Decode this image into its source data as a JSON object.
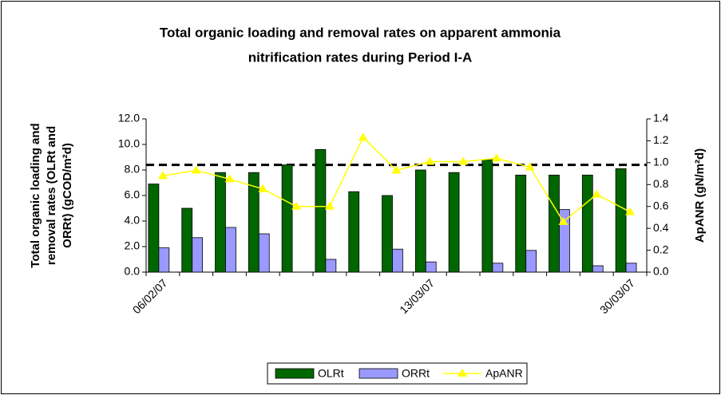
{
  "chart_data": {
    "type": "bar",
    "title": [
      "Total organic loading and removal rates on apparent ammonia",
      "nitrification rates during Period I-A"
    ],
    "ylabel": [
      "Total organic loading and",
      "removal rates (OLRt and",
      "ORRt) (gCOD/m²d)"
    ],
    "y2label": "ApANR (gN/m²d)",
    "categories": [
      "06/02/07",
      null,
      null,
      null,
      null,
      null,
      null,
      null,
      "13/03/07",
      null,
      null,
      null,
      null,
      null,
      "30/03/07"
    ],
    "series": [
      {
        "name": "OLRt",
        "type": "bar",
        "color": "#006600",
        "values": [
          6.9,
          5.0,
          7.8,
          7.8,
          8.4,
          9.6,
          6.3,
          6.0,
          8.0,
          7.8,
          8.8,
          7.6,
          7.6,
          7.6,
          8.1
        ]
      },
      {
        "name": "ORRt",
        "type": "bar",
        "color": "#9999ff",
        "values": [
          1.9,
          2.7,
          3.5,
          3.0,
          null,
          1.0,
          null,
          1.8,
          0.8,
          null,
          0.7,
          1.7,
          4.9,
          0.5,
          0.7
        ]
      },
      {
        "name": "ApANR",
        "type": "line",
        "axis": "y2",
        "color": "#ffff00",
        "marker": "triangle",
        "values": [
          0.88,
          0.93,
          0.85,
          0.76,
          0.6,
          0.6,
          1.23,
          0.93,
          1.01,
          1.01,
          1.04,
          0.96,
          0.46,
          0.71,
          0.55
        ]
      }
    ],
    "reference_line": {
      "value": 0.98,
      "axis": "y2",
      "color": "#000000",
      "style": "dashed"
    },
    "ylim": [
      0,
      12
    ],
    "yticks": [
      {
        "value": 0,
        "label": "0.0"
      },
      {
        "value": 2,
        "label": "2.0"
      },
      {
        "value": 4,
        "label": "4.0"
      },
      {
        "value": 6,
        "label": "6.0"
      },
      {
        "value": 8,
        "label": "8.0"
      },
      {
        "value": 10,
        "label": "10.0"
      },
      {
        "value": 12,
        "label": "12.0"
      }
    ],
    "y2lim": [
      0,
      1.4
    ],
    "y2ticks": [
      {
        "value": 0,
        "label": "0.0"
      },
      {
        "value": 0.2,
        "label": "0.2"
      },
      {
        "value": 0.4,
        "label": "0.4"
      },
      {
        "value": 0.6,
        "label": "0.6"
      },
      {
        "value": 0.8,
        "label": "0.8"
      },
      {
        "value": 1,
        "label": "1.0"
      },
      {
        "value": 1.2,
        "label": "1.2"
      },
      {
        "value": 1.4,
        "label": "1.4"
      }
    ],
    "legend": "bottom"
  }
}
